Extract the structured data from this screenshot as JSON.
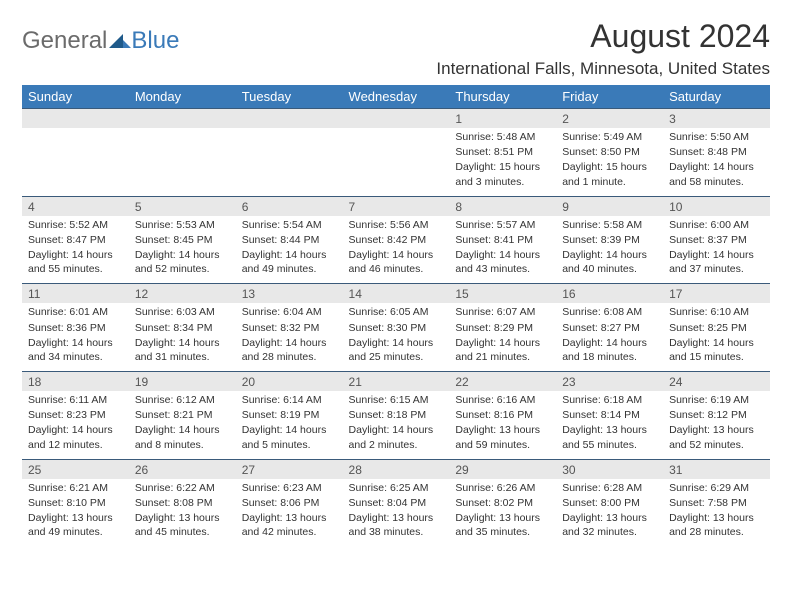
{
  "logo": {
    "general": "General",
    "blue": "Blue"
  },
  "title": "August 2024",
  "location": "International Falls, Minnesota, United States",
  "colors": {
    "header_bg": "#3a7ab8",
    "header_text": "#ffffff",
    "date_bg": "#e8e8e8",
    "border": "#3a5a7a",
    "logo_gray": "#6b6b6b",
    "logo_blue": "#3a7ab8"
  },
  "day_names": [
    "Sunday",
    "Monday",
    "Tuesday",
    "Wednesday",
    "Thursday",
    "Friday",
    "Saturday"
  ],
  "weeks": [
    [
      null,
      null,
      null,
      null,
      {
        "d": "1",
        "sr": "5:48 AM",
        "ss": "8:51 PM",
        "dl": "15 hours and 3 minutes."
      },
      {
        "d": "2",
        "sr": "5:49 AM",
        "ss": "8:50 PM",
        "dl": "15 hours and 1 minute."
      },
      {
        "d": "3",
        "sr": "5:50 AM",
        "ss": "8:48 PM",
        "dl": "14 hours and 58 minutes."
      }
    ],
    [
      {
        "d": "4",
        "sr": "5:52 AM",
        "ss": "8:47 PM",
        "dl": "14 hours and 55 minutes."
      },
      {
        "d": "5",
        "sr": "5:53 AM",
        "ss": "8:45 PM",
        "dl": "14 hours and 52 minutes."
      },
      {
        "d": "6",
        "sr": "5:54 AM",
        "ss": "8:44 PM",
        "dl": "14 hours and 49 minutes."
      },
      {
        "d": "7",
        "sr": "5:56 AM",
        "ss": "8:42 PM",
        "dl": "14 hours and 46 minutes."
      },
      {
        "d": "8",
        "sr": "5:57 AM",
        "ss": "8:41 PM",
        "dl": "14 hours and 43 minutes."
      },
      {
        "d": "9",
        "sr": "5:58 AM",
        "ss": "8:39 PM",
        "dl": "14 hours and 40 minutes."
      },
      {
        "d": "10",
        "sr": "6:00 AM",
        "ss": "8:37 PM",
        "dl": "14 hours and 37 minutes."
      }
    ],
    [
      {
        "d": "11",
        "sr": "6:01 AM",
        "ss": "8:36 PM",
        "dl": "14 hours and 34 minutes."
      },
      {
        "d": "12",
        "sr": "6:03 AM",
        "ss": "8:34 PM",
        "dl": "14 hours and 31 minutes."
      },
      {
        "d": "13",
        "sr": "6:04 AM",
        "ss": "8:32 PM",
        "dl": "14 hours and 28 minutes."
      },
      {
        "d": "14",
        "sr": "6:05 AM",
        "ss": "8:30 PM",
        "dl": "14 hours and 25 minutes."
      },
      {
        "d": "15",
        "sr": "6:07 AM",
        "ss": "8:29 PM",
        "dl": "14 hours and 21 minutes."
      },
      {
        "d": "16",
        "sr": "6:08 AM",
        "ss": "8:27 PM",
        "dl": "14 hours and 18 minutes."
      },
      {
        "d": "17",
        "sr": "6:10 AM",
        "ss": "8:25 PM",
        "dl": "14 hours and 15 minutes."
      }
    ],
    [
      {
        "d": "18",
        "sr": "6:11 AM",
        "ss": "8:23 PM",
        "dl": "14 hours and 12 minutes."
      },
      {
        "d": "19",
        "sr": "6:12 AM",
        "ss": "8:21 PM",
        "dl": "14 hours and 8 minutes."
      },
      {
        "d": "20",
        "sr": "6:14 AM",
        "ss": "8:19 PM",
        "dl": "14 hours and 5 minutes."
      },
      {
        "d": "21",
        "sr": "6:15 AM",
        "ss": "8:18 PM",
        "dl": "14 hours and 2 minutes."
      },
      {
        "d": "22",
        "sr": "6:16 AM",
        "ss": "8:16 PM",
        "dl": "13 hours and 59 minutes."
      },
      {
        "d": "23",
        "sr": "6:18 AM",
        "ss": "8:14 PM",
        "dl": "13 hours and 55 minutes."
      },
      {
        "d": "24",
        "sr": "6:19 AM",
        "ss": "8:12 PM",
        "dl": "13 hours and 52 minutes."
      }
    ],
    [
      {
        "d": "25",
        "sr": "6:21 AM",
        "ss": "8:10 PM",
        "dl": "13 hours and 49 minutes."
      },
      {
        "d": "26",
        "sr": "6:22 AM",
        "ss": "8:08 PM",
        "dl": "13 hours and 45 minutes."
      },
      {
        "d": "27",
        "sr": "6:23 AM",
        "ss": "8:06 PM",
        "dl": "13 hours and 42 minutes."
      },
      {
        "d": "28",
        "sr": "6:25 AM",
        "ss": "8:04 PM",
        "dl": "13 hours and 38 minutes."
      },
      {
        "d": "29",
        "sr": "6:26 AM",
        "ss": "8:02 PM",
        "dl": "13 hours and 35 minutes."
      },
      {
        "d": "30",
        "sr": "6:28 AM",
        "ss": "8:00 PM",
        "dl": "13 hours and 32 minutes."
      },
      {
        "d": "31",
        "sr": "6:29 AM",
        "ss": "7:58 PM",
        "dl": "13 hours and 28 minutes."
      }
    ]
  ],
  "labels": {
    "sunrise": "Sunrise: ",
    "sunset": "Sunset: ",
    "daylight": "Daylight: "
  }
}
